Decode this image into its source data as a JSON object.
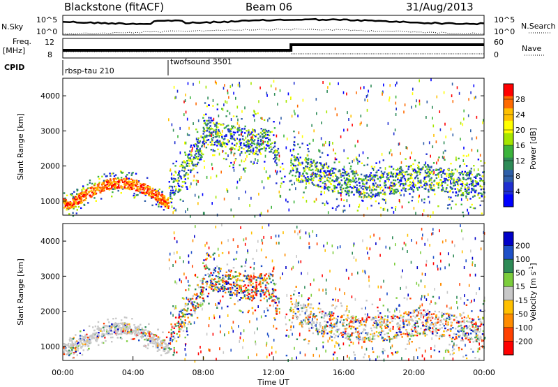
{
  "header": {
    "station": "Blackstone (fitACF)",
    "beam": "Beam 06",
    "date": "31/Aug/2013"
  },
  "top_panels": {
    "nsky_label": "N.Sky",
    "nsky_ticks": [
      "10^5",
      "10^0"
    ],
    "nsearch_label": "N.Search",
    "freq_label_1": "Freq.",
    "freq_label_2": "[MHz]",
    "freq_ticks": [
      "12",
      "8"
    ],
    "nave_label": "Nave",
    "nave_ticks": [
      "60",
      "0"
    ],
    "cpid_label": "CPID",
    "cpid_segments": [
      {
        "name": "rbsp-tau 210",
        "start_hour": 0
      },
      {
        "name": "twofsound 3501",
        "start_hour": 6
      }
    ],
    "nave_switch_hour": 13
  },
  "chart_data": [
    {
      "type": "heatmap",
      "title": "Power",
      "xlabel": "",
      "ylabel": "Slant Range [km]",
      "xlim": [
        0,
        24
      ],
      "ylim": [
        600,
        4500
      ],
      "yticks": [
        "1000",
        "2000",
        "3000",
        "4000"
      ],
      "colorbar_label": "Power [dB]",
      "colorbar_ticks": [
        "28",
        "24",
        "20",
        "16",
        "12",
        "8",
        "4"
      ],
      "colorbar_colors": [
        "#ff0000",
        "#ff6a00",
        "#ffc000",
        "#ffff00",
        "#a5e600",
        "#3cb43c",
        "#2e8b57",
        "#2f5fa8",
        "#1f2fd0",
        "#0000ff"
      ],
      "scatter_regions": [
        {
          "start_hour": 0.0,
          "end_hour": 6.0,
          "range_km": [
            800,
            2200
          ],
          "note": "strong echoes near 1000-1600 km"
        },
        {
          "start_hour": 6.0,
          "end_hour": 12.5,
          "range_km": [
            1200,
            3100
          ]
        },
        {
          "start_hour": 12.5,
          "end_hour": 24.0,
          "range_km": [
            1200,
            2600
          ]
        }
      ]
    },
    {
      "type": "heatmap",
      "title": "Velocity",
      "xlabel": "Time UT",
      "ylabel": "Slant Range [km]",
      "xlim": [
        0,
        24
      ],
      "ylim": [
        600,
        4500
      ],
      "xticks": [
        "00:00",
        "04:00",
        "08:00",
        "12:00",
        "16:00",
        "20:00",
        "00:00"
      ],
      "yticks": [
        "1000",
        "2000",
        "3000",
        "4000"
      ],
      "colorbar_label": "Velocity [m s",
      "colorbar_label_sup": "-1",
      "colorbar_label_end": "]",
      "colorbar_ticks": [
        "200",
        "100",
        "50",
        "15",
        "-15",
        "-50",
        "-100",
        "-200"
      ],
      "colorbar_colors": [
        "#0000c8",
        "#1e50c8",
        "#2e8b57",
        "#7ccd3c",
        "#c8c8c8",
        "#ffc000",
        "#ff8c00",
        "#ff4000",
        "#ff0000"
      ]
    }
  ]
}
